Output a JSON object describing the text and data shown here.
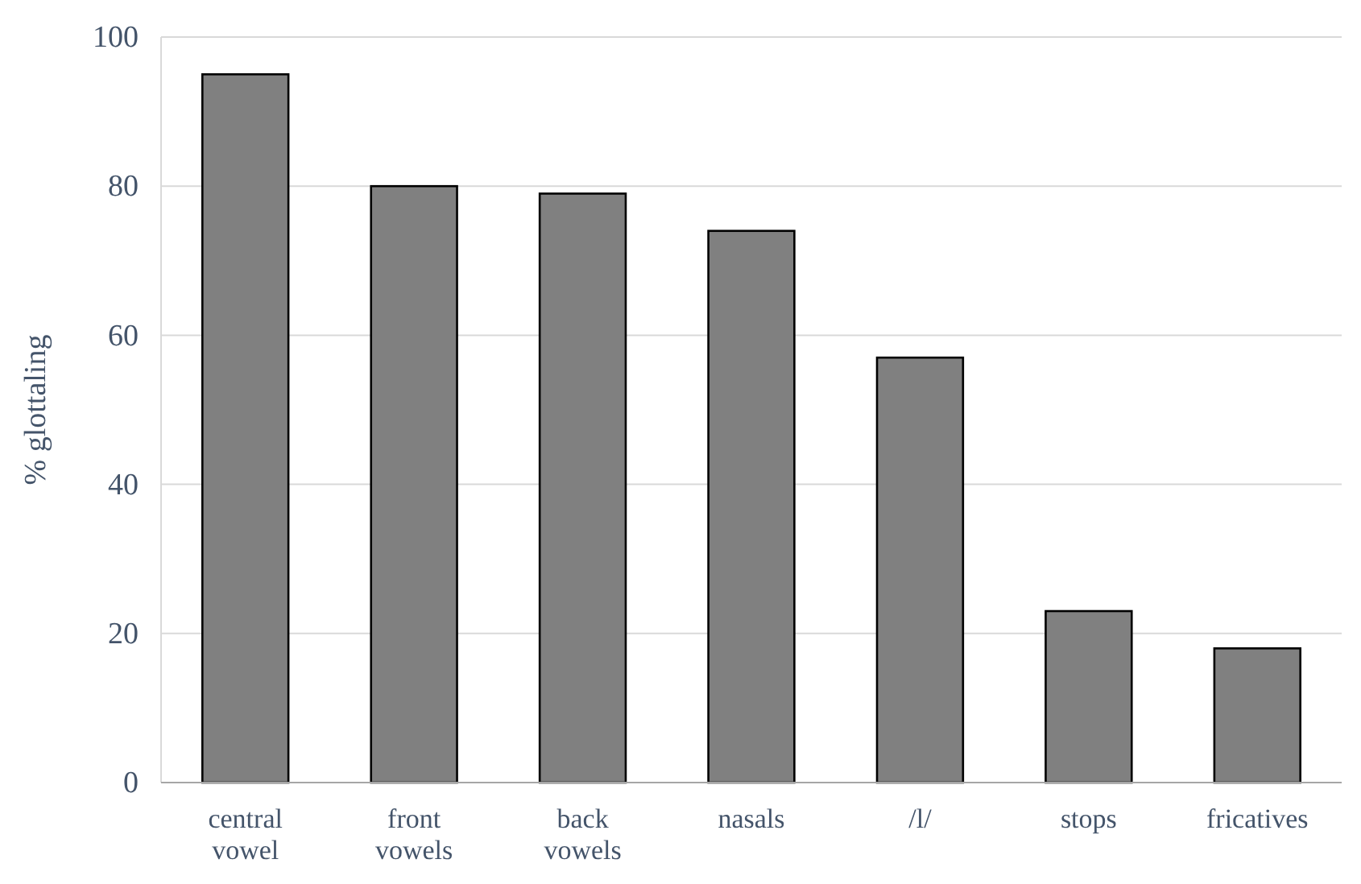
{
  "chart_data": {
    "type": "bar",
    "ylabel": "% glottaling",
    "categories": [
      "central vowel",
      "front vowels",
      "back vowels",
      "nasals",
      "/l/",
      "stops",
      "fricatives"
    ],
    "values": [
      95,
      80,
      79,
      74,
      57,
      23,
      18
    ],
    "color": "#808080",
    "ylim": [
      0,
      100
    ],
    "yticks": [
      0,
      20,
      40,
      60,
      80,
      100
    ],
    "grid": "y"
  }
}
